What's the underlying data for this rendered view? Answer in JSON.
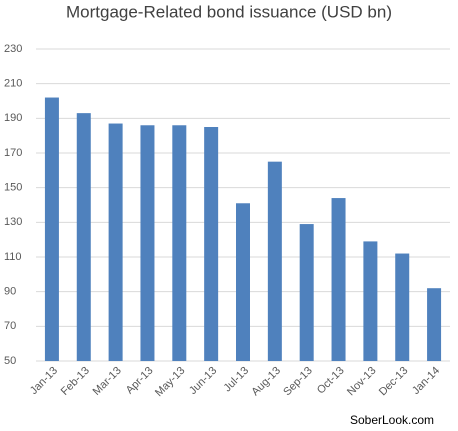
{
  "chart_data": {
    "type": "bar",
    "title": "Mortgage-Related bond issuance (USD bn)",
    "categories": [
      "Jan-13",
      "Feb-13",
      "Mar-13",
      "Apr-13",
      "May-13",
      "Jun-13",
      "Jul-13",
      "Aug-13",
      "Sep-13",
      "Oct-13",
      "Nov-13",
      "Dec-13",
      "Jan-14"
    ],
    "values": [
      202,
      193,
      187,
      186,
      186,
      185,
      141,
      165,
      129,
      144,
      119,
      112,
      92
    ],
    "color": "#4f81bd",
    "ylim": [
      50,
      230
    ],
    "yticks": [
      50,
      70,
      90,
      110,
      130,
      150,
      170,
      190,
      210,
      230
    ],
    "grid": true,
    "watermark": "SoberLook.com"
  }
}
